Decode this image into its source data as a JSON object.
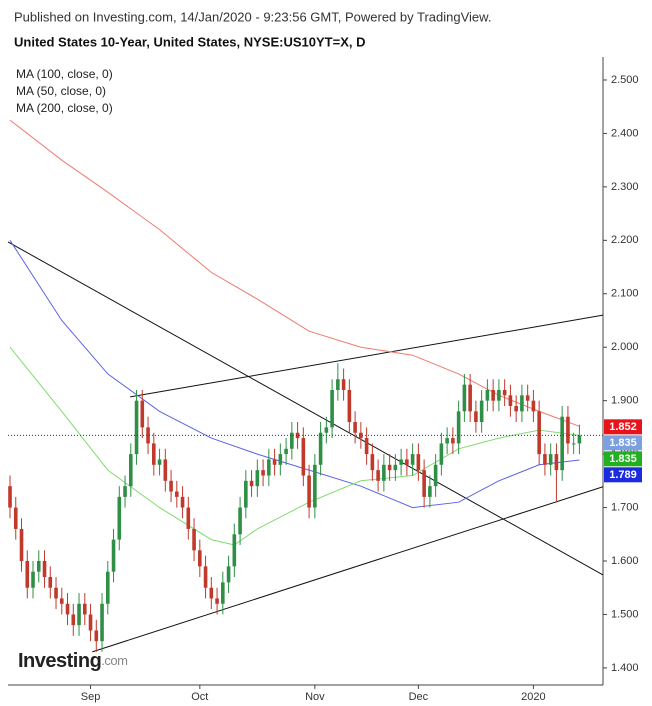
{
  "header": {
    "published": "Published on Investing.com, 14/Jan/2020 - 9:23:56 GMT, Powered by TradingView.",
    "logo": "Investing",
    "logo_suffix": ".com"
  },
  "chart_data": {
    "type": "candlestick",
    "title": "United States 10-Year, United States, NYSE:US10YT=X, D",
    "categories": [
      null,
      null,
      null,
      null,
      null,
      null,
      null,
      null,
      null,
      null,
      null,
      null,
      null,
      null,
      "Sep",
      null,
      null,
      null,
      null,
      null,
      null,
      null,
      null,
      null,
      null,
      null,
      null,
      null,
      null,
      null,
      null,
      null,
      null,
      "Oct",
      null,
      null,
      null,
      null,
      null,
      null,
      null,
      null,
      null,
      null,
      null,
      null,
      null,
      null,
      null,
      null,
      null,
      null,
      null,
      "Nov",
      null,
      null,
      null,
      null,
      null,
      null,
      null,
      null,
      null,
      null,
      null,
      null,
      null,
      null,
      null,
      null,
      null,
      "Dec",
      null,
      null,
      null,
      null,
      null,
      null,
      null,
      null,
      null,
      null,
      null,
      null,
      null,
      null,
      null,
      null,
      null,
      null,
      null,
      "2020",
      null,
      null,
      null,
      null,
      null,
      null,
      null,
      null
    ],
    "open": [
      1.74,
      1.7,
      1.66,
      1.6,
      1.55,
      1.58,
      1.6,
      1.57,
      1.55,
      1.53,
      1.52,
      1.5,
      1.48,
      1.52,
      1.5,
      1.47,
      1.45,
      1.52,
      1.58,
      1.64,
      1.72,
      1.74,
      1.8,
      1.9,
      1.85,
      1.82,
      1.78,
      1.79,
      1.75,
      1.73,
      1.72,
      1.7,
      1.66,
      1.62,
      1.59,
      1.55,
      1.53,
      1.52,
      1.56,
      1.59,
      1.65,
      1.7,
      1.75,
      1.74,
      1.77,
      1.76,
      1.79,
      1.78,
      1.8,
      1.81,
      1.84,
      1.83,
      1.76,
      1.7,
      1.78,
      1.84,
      1.85,
      1.92,
      1.94,
      1.92,
      1.86,
      1.84,
      1.83,
      1.8,
      1.77,
      1.75,
      1.78,
      1.77,
      1.78,
      1.79,
      1.78,
      1.8,
      1.77,
      1.72,
      1.74,
      1.78,
      1.82,
      1.83,
      1.82,
      1.88,
      1.93,
      1.88,
      1.86,
      1.9,
      1.92,
      1.9,
      1.92,
      1.91,
      1.89,
      1.88,
      1.91,
      1.9,
      1.88,
      1.8,
      1.78,
      1.8,
      1.77,
      1.87,
      1.82,
      1.82
    ],
    "high": [
      1.76,
      1.72,
      1.68,
      1.62,
      1.6,
      1.62,
      1.62,
      1.59,
      1.57,
      1.55,
      1.54,
      1.52,
      1.54,
      1.54,
      1.52,
      1.49,
      1.54,
      1.6,
      1.66,
      1.74,
      1.76,
      1.82,
      1.92,
      1.92,
      1.87,
      1.84,
      1.81,
      1.81,
      1.77,
      1.75,
      1.74,
      1.72,
      1.68,
      1.64,
      1.61,
      1.57,
      1.55,
      1.58,
      1.61,
      1.67,
      1.72,
      1.77,
      1.77,
      1.79,
      1.79,
      1.81,
      1.81,
      1.82,
      1.83,
      1.86,
      1.86,
      1.85,
      1.78,
      1.8,
      1.86,
      1.87,
      1.94,
      1.97,
      1.96,
      1.94,
      1.88,
      1.86,
      1.85,
      1.82,
      1.79,
      1.8,
      1.8,
      1.8,
      1.81,
      1.81,
      1.82,
      1.82,
      1.79,
      1.76,
      1.8,
      1.84,
      1.85,
      1.85,
      1.9,
      1.95,
      1.95,
      1.9,
      1.92,
      1.94,
      1.94,
      1.94,
      1.94,
      1.93,
      1.91,
      1.93,
      1.93,
      1.92,
      1.9,
      1.82,
      1.82,
      1.82,
      1.89,
      1.89,
      1.84,
      1.855
    ],
    "low": [
      1.68,
      1.64,
      1.58,
      1.53,
      1.53,
      1.56,
      1.55,
      1.53,
      1.51,
      1.5,
      1.48,
      1.46,
      1.46,
      1.48,
      1.45,
      1.43,
      1.43,
      1.5,
      1.56,
      1.62,
      1.7,
      1.72,
      1.78,
      1.83,
      1.8,
      1.76,
      1.76,
      1.73,
      1.71,
      1.7,
      1.68,
      1.64,
      1.6,
      1.57,
      1.53,
      1.51,
      1.5,
      1.5,
      1.54,
      1.57,
      1.63,
      1.68,
      1.72,
      1.72,
      1.74,
      1.74,
      1.76,
      1.76,
      1.78,
      1.79,
      1.81,
      1.74,
      1.68,
      1.68,
      1.76,
      1.82,
      1.83,
      1.9,
      1.9,
      1.84,
      1.82,
      1.81,
      1.78,
      1.75,
      1.73,
      1.73,
      1.75,
      1.75,
      1.76,
      1.76,
      1.76,
      1.75,
      1.7,
      1.7,
      1.72,
      1.76,
      1.8,
      1.8,
      1.8,
      1.86,
      1.86,
      1.84,
      1.84,
      1.88,
      1.88,
      1.88,
      1.89,
      1.87,
      1.86,
      1.86,
      1.88,
      1.86,
      1.78,
      1.76,
      1.76,
      1.71,
      1.75,
      1.8,
      1.8,
      1.8
    ],
    "close": [
      1.7,
      1.66,
      1.6,
      1.55,
      1.58,
      1.6,
      1.57,
      1.55,
      1.53,
      1.52,
      1.5,
      1.48,
      1.52,
      1.5,
      1.47,
      1.45,
      1.52,
      1.58,
      1.64,
      1.72,
      1.74,
      1.8,
      1.9,
      1.85,
      1.82,
      1.78,
      1.79,
      1.75,
      1.73,
      1.72,
      1.7,
      1.66,
      1.62,
      1.59,
      1.55,
      1.53,
      1.52,
      1.56,
      1.59,
      1.65,
      1.7,
      1.75,
      1.74,
      1.77,
      1.76,
      1.79,
      1.78,
      1.8,
      1.81,
      1.84,
      1.83,
      1.76,
      1.7,
      1.78,
      1.84,
      1.85,
      1.92,
      1.94,
      1.92,
      1.86,
      1.84,
      1.83,
      1.8,
      1.77,
      1.75,
      1.78,
      1.77,
      1.78,
      1.79,
      1.78,
      1.8,
      1.77,
      1.72,
      1.74,
      1.78,
      1.82,
      1.83,
      1.82,
      1.88,
      1.93,
      1.88,
      1.86,
      1.9,
      1.92,
      1.9,
      1.92,
      1.91,
      1.89,
      1.88,
      1.91,
      1.9,
      1.88,
      1.8,
      1.78,
      1.8,
      1.77,
      1.87,
      1.82,
      1.82,
      1.835
    ],
    "up_color": "#2f8f46",
    "down_color": "#c0392b",
    "last_color": "#7b9fe0",
    "series": [
      {
        "name": "MA (100, close, 0)",
        "color": "#5b63e8",
        "label_color": "#1a2be0",
        "x": [
          0,
          9,
          17,
          26,
          35,
          43,
          52,
          61,
          70,
          78,
          85,
          92,
          99
        ],
        "values": [
          2.2,
          2.05,
          1.95,
          1.88,
          1.83,
          1.8,
          1.77,
          1.74,
          1.7,
          1.71,
          1.75,
          1.78,
          1.789
        ]
      },
      {
        "name": "MA (50, close, 0)",
        "color": "#7fdc6e",
        "label_color": "#22b022",
        "x": [
          0,
          9,
          17,
          26,
          35,
          39,
          43,
          52,
          61,
          70,
          78,
          85,
          92,
          99
        ],
        "values": [
          2.0,
          1.88,
          1.77,
          1.7,
          1.64,
          1.63,
          1.66,
          1.71,
          1.75,
          1.76,
          1.81,
          1.83,
          1.845,
          1.835
        ]
      },
      {
        "name": "MA (200, close, 0)",
        "color": "#f07a6e",
        "label_color": "#e8121a",
        "x": [
          0,
          9,
          17,
          26,
          35,
          43,
          52,
          61,
          70,
          78,
          85,
          92,
          99
        ],
        "values": [
          2.425,
          2.35,
          2.29,
          2.22,
          2.14,
          2.09,
          2.03,
          2.0,
          1.985,
          1.95,
          1.91,
          1.88,
          1.852
        ]
      }
    ],
    "trendlines": [
      {
        "x": [
          -0.35,
          103.1
        ],
        "y": [
          2.197,
          1.574
        ]
      },
      {
        "x": [
          20.9,
          103.1
        ],
        "y": [
          1.907,
          2.06
        ]
      },
      {
        "x": [
          14.3,
          103.1
        ],
        "y": [
          1.43,
          1.739
        ]
      }
    ],
    "xlim": [
      -0.35,
      103.1
    ],
    "ylim": [
      1.368,
      2.543
    ],
    "yticks": [
      {
        "value": 1.4,
        "label": "1.400"
      },
      {
        "value": 1.5,
        "label": "1.500"
      },
      {
        "value": 1.6,
        "label": "1.600"
      },
      {
        "value": 1.7,
        "label": "1.700"
      },
      {
        "value": 1.8,
        "label": "1.800"
      },
      {
        "value": 1.9,
        "label": "1.900"
      },
      {
        "value": 2.0,
        "label": "2.000"
      },
      {
        "value": 2.1,
        "label": "2.100"
      },
      {
        "value": 2.2,
        "label": "2.200"
      },
      {
        "value": 2.3,
        "label": "2.300"
      },
      {
        "value": 2.4,
        "label": "2.400"
      },
      {
        "value": 2.5,
        "label": "2.500"
      }
    ],
    "grid": false
  }
}
